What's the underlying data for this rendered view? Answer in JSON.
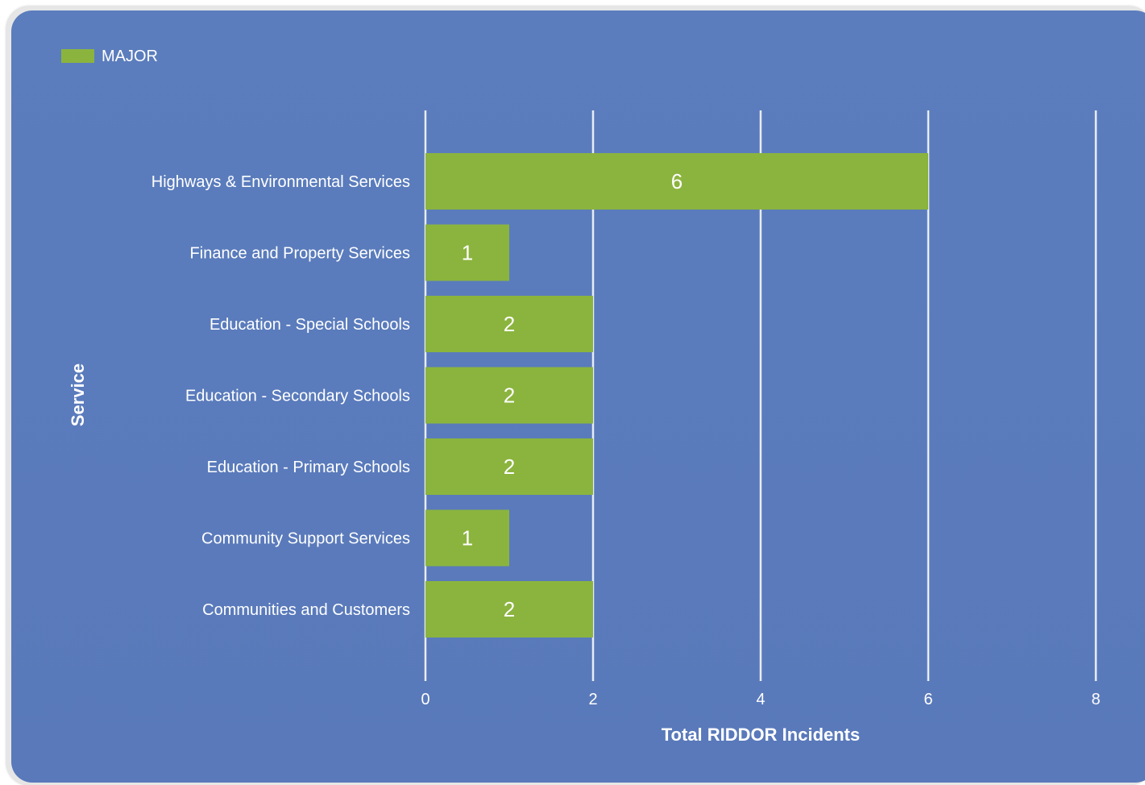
{
  "chart_data": {
    "type": "bar",
    "orientation": "horizontal",
    "categories": [
      "Highways & Environmental Services",
      "Finance and Property Services",
      "Education - Special Schools",
      "Education - Secondary Schools",
      "Education - Primary Schools",
      "Community Support Services",
      "Communities and Customers"
    ],
    "series": [
      {
        "name": "MAJOR",
        "values": [
          6,
          1,
          2,
          2,
          2,
          1,
          2
        ]
      }
    ],
    "xlabel": "Total RIDDOR Incidents",
    "ylabel": "Service",
    "xlim": [
      0,
      8
    ],
    "xticks": [
      "0",
      "2",
      "4",
      "6",
      "8"
    ],
    "grid": "vertical",
    "legend_position": "top-left",
    "data_labels": true
  },
  "colors": {
    "background": "#5b7dbd",
    "bar": "#8bb43e",
    "gridline": "#e8ecf4",
    "text": "#ffffff"
  }
}
